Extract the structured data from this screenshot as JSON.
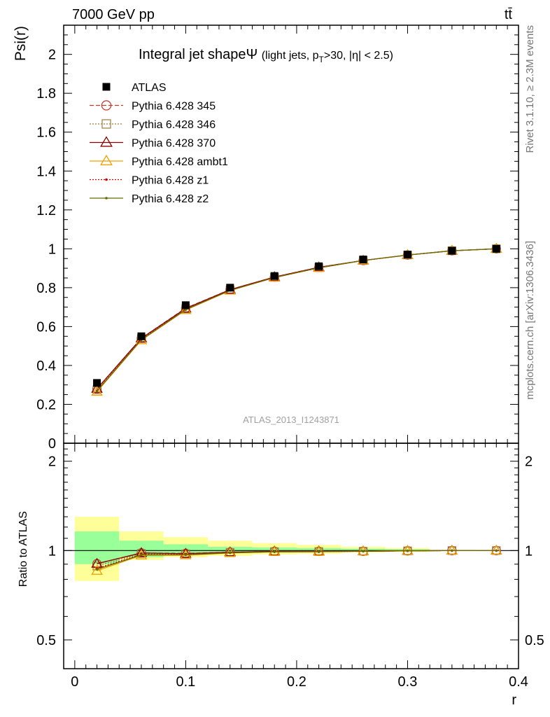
{
  "header": {
    "energy_label": "7000 GeV pp",
    "process_label": "tt̄",
    "title_main": "Integral jet shape",
    "title_symbol": "Ψ",
    "title_sub_a": "(light jets, p",
    "title_sub_b": "T",
    "title_sub_c": ">30, |η| < 2.5)"
  },
  "side": {
    "rivet": "Rivet 3.1.10, ≥ 2.3M events",
    "mcplots": "mcplots.cern.ch [arXiv:1306.3436]"
  },
  "watermark": "ATLAS_2013_I1243871",
  "chart_data": {
    "type": "line",
    "xlabel": "r",
    "ylabel": "Psi(r)",
    "ratio_ylabel": "Ratio to ATLAS",
    "xlim": [
      -0.01,
      0.4
    ],
    "ylim": [
      0,
      2.15
    ],
    "ratio_ylim": [
      0.4,
      2.3
    ],
    "x_ticks": [
      "0",
      "0.1",
      "0.2",
      "0.3",
      "0.4"
    ],
    "y_ticks": [
      "0",
      "0.2",
      "0.4",
      "0.6",
      "0.8",
      "1",
      "1.2",
      "1.4",
      "1.6",
      "1.8",
      "2"
    ],
    "ratio_ticks": [
      "0.5",
      "1",
      "2"
    ],
    "x": [
      0.02,
      0.06,
      0.1,
      0.14,
      0.18,
      0.22,
      0.26,
      0.3,
      0.34,
      0.38
    ],
    "bin_edges": [
      0.0,
      0.04,
      0.08,
      0.12,
      0.16,
      0.2,
      0.24,
      0.28,
      0.32,
      0.36,
      0.4
    ],
    "data": {
      "name": "ATLAS",
      "values": [
        0.31,
        0.55,
        0.71,
        0.8,
        0.86,
        0.91,
        0.945,
        0.97,
        0.99,
        1.0
      ]
    },
    "bands": {
      "inner": [
        [
          0.9,
          1.16
        ],
        [
          0.95,
          1.08
        ],
        [
          0.97,
          1.05
        ],
        [
          0.98,
          1.03
        ],
        [
          0.985,
          1.025
        ],
        [
          0.99,
          1.02
        ],
        [
          0.99,
          1.015
        ],
        [
          0.995,
          1.01
        ],
        [
          0.998,
          1.005
        ],
        [
          1.0,
          1.0
        ]
      ],
      "outer": [
        [
          0.79,
          1.3
        ],
        [
          0.93,
          1.16
        ],
        [
          0.95,
          1.11
        ],
        [
          0.96,
          1.08
        ],
        [
          0.97,
          1.06
        ],
        [
          0.975,
          1.045
        ],
        [
          0.985,
          1.03
        ],
        [
          0.99,
          1.02
        ],
        [
          1.0,
          1.0
        ],
        [
          1.0,
          1.0
        ]
      ]
    },
    "series": [
      {
        "name": "Pythia 6.428 345",
        "color": "#c0392b",
        "marker": "circle",
        "dash": "6,3",
        "values": [
          0.28,
          0.54,
          0.695,
          0.79,
          0.855,
          0.905,
          0.94,
          0.968,
          0.99,
          1.0
        ]
      },
      {
        "name": "Pythia 6.428 346",
        "color": "#a07c3c",
        "marker": "square",
        "dash": "2,2",
        "values": [
          0.275,
          0.538,
          0.692,
          0.788,
          0.853,
          0.903,
          0.94,
          0.968,
          0.99,
          1.0
        ]
      },
      {
        "name": "Pythia 6.428 370",
        "color": "#8b0000",
        "marker": "triangle",
        "dash": "",
        "values": [
          0.28,
          0.54,
          0.693,
          0.79,
          0.855,
          0.905,
          0.94,
          0.968,
          0.99,
          1.0
        ]
      },
      {
        "name": "Pythia 6.428 ambt1",
        "color": "#f0a000",
        "marker": "triangle",
        "dash": "",
        "values": [
          0.265,
          0.53,
          0.685,
          0.785,
          0.852,
          0.902,
          0.94,
          0.968,
          0.99,
          1.0
        ]
      },
      {
        "name": "Pythia 6.428 z1",
        "color": "#cc0000",
        "marker": "dot",
        "dash": "2,2",
        "values": [
          0.27,
          0.534,
          0.688,
          0.787,
          0.852,
          0.902,
          0.94,
          0.968,
          0.99,
          1.0
        ]
      },
      {
        "name": "Pythia 6.428 z2",
        "color": "#6b6b00",
        "marker": "dot",
        "dash": "",
        "values": [
          0.268,
          0.532,
          0.687,
          0.786,
          0.852,
          0.902,
          0.94,
          0.968,
          0.99,
          1.0
        ]
      }
    ],
    "legend_position": "top-left"
  }
}
